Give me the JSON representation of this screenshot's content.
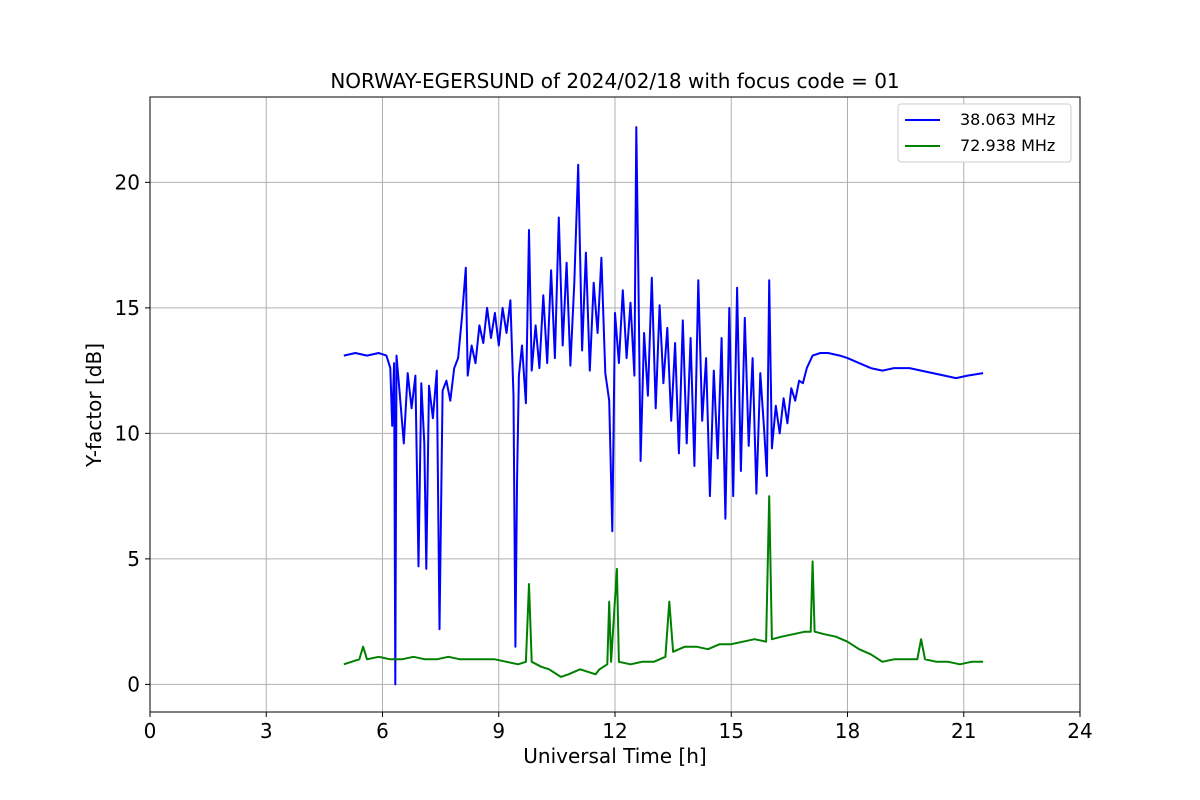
{
  "chart_data": {
    "type": "line",
    "title": "NORWAY-EGERSUND of 2024/02/18 with focus code = 01",
    "xlabel": "Universal Time [h]",
    "ylabel": "Y-factor [dB]",
    "xlim": [
      0,
      24
    ],
    "ylim": [
      -1.1,
      23.4
    ],
    "xticks": [
      0,
      3,
      6,
      9,
      12,
      15,
      18,
      21,
      24
    ],
    "yticks": [
      0,
      5,
      10,
      15,
      20
    ],
    "grid": true,
    "legend_position": "top-right",
    "series": [
      {
        "name": "38.063 MHz",
        "color": "#0000ff",
        "points": [
          [
            5.0,
            13.1
          ],
          [
            5.3,
            13.2
          ],
          [
            5.6,
            13.1
          ],
          [
            5.9,
            13.2
          ],
          [
            6.1,
            13.1
          ],
          [
            6.2,
            12.6
          ],
          [
            6.25,
            10.3
          ],
          [
            6.3,
            12.8
          ],
          [
            6.33,
            0.0
          ],
          [
            6.36,
            13.1
          ],
          [
            6.45,
            11.5
          ],
          [
            6.55,
            9.6
          ],
          [
            6.65,
            12.4
          ],
          [
            6.75,
            11.0
          ],
          [
            6.85,
            12.3
          ],
          [
            6.93,
            4.7
          ],
          [
            7.0,
            12.0
          ],
          [
            7.08,
            9.6
          ],
          [
            7.13,
            4.6
          ],
          [
            7.2,
            11.9
          ],
          [
            7.3,
            10.6
          ],
          [
            7.4,
            12.5
          ],
          [
            7.47,
            2.2
          ],
          [
            7.55,
            11.7
          ],
          [
            7.65,
            12.1
          ],
          [
            7.75,
            11.3
          ],
          [
            7.85,
            12.6
          ],
          [
            7.95,
            13.0
          ],
          [
            8.05,
            14.6
          ],
          [
            8.15,
            16.6
          ],
          [
            8.2,
            12.3
          ],
          [
            8.3,
            13.5
          ],
          [
            8.4,
            12.8
          ],
          [
            8.5,
            14.3
          ],
          [
            8.6,
            13.6
          ],
          [
            8.7,
            15.0
          ],
          [
            8.8,
            13.8
          ],
          [
            8.9,
            14.8
          ],
          [
            9.0,
            13.5
          ],
          [
            9.1,
            15.0
          ],
          [
            9.2,
            14.0
          ],
          [
            9.3,
            15.3
          ],
          [
            9.38,
            11.5
          ],
          [
            9.43,
            1.5
          ],
          [
            9.47,
            8.0
          ],
          [
            9.52,
            12.3
          ],
          [
            9.6,
            13.5
          ],
          [
            9.7,
            11.2
          ],
          [
            9.78,
            18.1
          ],
          [
            9.85,
            12.5
          ],
          [
            9.95,
            14.3
          ],
          [
            10.05,
            12.6
          ],
          [
            10.15,
            15.5
          ],
          [
            10.25,
            12.8
          ],
          [
            10.35,
            16.5
          ],
          [
            10.45,
            13.0
          ],
          [
            10.55,
            18.6
          ],
          [
            10.65,
            13.5
          ],
          [
            10.75,
            16.8
          ],
          [
            10.85,
            12.7
          ],
          [
            10.95,
            16.0
          ],
          [
            11.05,
            20.7
          ],
          [
            11.15,
            13.3
          ],
          [
            11.25,
            17.2
          ],
          [
            11.35,
            12.5
          ],
          [
            11.45,
            16.0
          ],
          [
            11.55,
            14.0
          ],
          [
            11.65,
            17.0
          ],
          [
            11.75,
            12.4
          ],
          [
            11.85,
            11.3
          ],
          [
            11.93,
            6.1
          ],
          [
            12.0,
            14.8
          ],
          [
            12.1,
            12.8
          ],
          [
            12.2,
            15.7
          ],
          [
            12.3,
            13.0
          ],
          [
            12.4,
            15.2
          ],
          [
            12.5,
            12.3
          ],
          [
            12.55,
            22.2
          ],
          [
            12.6,
            16.5
          ],
          [
            12.66,
            8.9
          ],
          [
            12.75,
            14.0
          ],
          [
            12.85,
            11.5
          ],
          [
            12.95,
            16.2
          ],
          [
            13.05,
            11.0
          ],
          [
            13.15,
            15.1
          ],
          [
            13.25,
            12.0
          ],
          [
            13.35,
            14.2
          ],
          [
            13.45,
            10.5
          ],
          [
            13.55,
            13.6
          ],
          [
            13.65,
            9.2
          ],
          [
            13.75,
            14.5
          ],
          [
            13.85,
            9.6
          ],
          [
            13.95,
            13.8
          ],
          [
            14.05,
            8.7
          ],
          [
            14.15,
            16.1
          ],
          [
            14.25,
            10.5
          ],
          [
            14.35,
            13.0
          ],
          [
            14.45,
            7.5
          ],
          [
            14.55,
            12.5
          ],
          [
            14.65,
            9.0
          ],
          [
            14.75,
            13.8
          ],
          [
            14.85,
            6.6
          ],
          [
            14.95,
            15.0
          ],
          [
            15.05,
            7.5
          ],
          [
            15.15,
            15.8
          ],
          [
            15.25,
            8.5
          ],
          [
            15.35,
            14.6
          ],
          [
            15.45,
            9.5
          ],
          [
            15.55,
            13.0
          ],
          [
            15.65,
            7.6
          ],
          [
            15.75,
            12.4
          ],
          [
            15.85,
            10.1
          ],
          [
            15.92,
            8.3
          ],
          [
            15.98,
            16.1
          ],
          [
            16.05,
            9.4
          ],
          [
            16.15,
            11.1
          ],
          [
            16.25,
            10.0
          ],
          [
            16.35,
            11.4
          ],
          [
            16.45,
            10.4
          ],
          [
            16.55,
            11.8
          ],
          [
            16.65,
            11.3
          ],
          [
            16.75,
            12.1
          ],
          [
            16.85,
            12.0
          ],
          [
            16.95,
            12.6
          ],
          [
            17.1,
            13.1
          ],
          [
            17.3,
            13.2
          ],
          [
            17.5,
            13.2
          ],
          [
            17.8,
            13.1
          ],
          [
            18.0,
            13.0
          ],
          [
            18.3,
            12.8
          ],
          [
            18.6,
            12.6
          ],
          [
            18.9,
            12.5
          ],
          [
            19.2,
            12.6
          ],
          [
            19.6,
            12.6
          ],
          [
            19.9,
            12.5
          ],
          [
            20.2,
            12.4
          ],
          [
            20.5,
            12.3
          ],
          [
            20.8,
            12.2
          ],
          [
            21.1,
            12.3
          ],
          [
            21.5,
            12.4
          ]
        ]
      },
      {
        "name": "72.938 MHz",
        "color": "#008000",
        "points": [
          [
            5.0,
            0.8
          ],
          [
            5.2,
            0.9
          ],
          [
            5.4,
            1.0
          ],
          [
            5.5,
            1.5
          ],
          [
            5.6,
            1.0
          ],
          [
            5.9,
            1.1
          ],
          [
            6.2,
            1.0
          ],
          [
            6.5,
            1.0
          ],
          [
            6.8,
            1.1
          ],
          [
            7.1,
            1.0
          ],
          [
            7.4,
            1.0
          ],
          [
            7.7,
            1.1
          ],
          [
            8.0,
            1.0
          ],
          [
            8.3,
            1.0
          ],
          [
            8.6,
            1.0
          ],
          [
            8.9,
            1.0
          ],
          [
            9.2,
            0.9
          ],
          [
            9.5,
            0.8
          ],
          [
            9.7,
            0.9
          ],
          [
            9.78,
            4.0
          ],
          [
            9.85,
            0.9
          ],
          [
            10.1,
            0.7
          ],
          [
            10.3,
            0.6
          ],
          [
            10.6,
            0.3
          ],
          [
            10.8,
            0.4
          ],
          [
            11.1,
            0.6
          ],
          [
            11.3,
            0.5
          ],
          [
            11.5,
            0.4
          ],
          [
            11.6,
            0.6
          ],
          [
            11.8,
            0.8
          ],
          [
            11.85,
            3.3
          ],
          [
            11.9,
            0.9
          ],
          [
            12.05,
            4.6
          ],
          [
            12.1,
            0.9
          ],
          [
            12.4,
            0.8
          ],
          [
            12.7,
            0.9
          ],
          [
            13.0,
            0.9
          ],
          [
            13.3,
            1.1
          ],
          [
            13.4,
            3.3
          ],
          [
            13.5,
            1.3
          ],
          [
            13.8,
            1.5
          ],
          [
            14.1,
            1.5
          ],
          [
            14.4,
            1.4
          ],
          [
            14.7,
            1.6
          ],
          [
            15.0,
            1.6
          ],
          [
            15.3,
            1.7
          ],
          [
            15.6,
            1.8
          ],
          [
            15.9,
            1.7
          ],
          [
            15.98,
            7.5
          ],
          [
            16.05,
            1.8
          ],
          [
            16.3,
            1.9
          ],
          [
            16.6,
            2.0
          ],
          [
            16.9,
            2.1
          ],
          [
            17.05,
            2.1
          ],
          [
            17.1,
            4.9
          ],
          [
            17.15,
            2.1
          ],
          [
            17.4,
            2.0
          ],
          [
            17.7,
            1.9
          ],
          [
            18.0,
            1.7
          ],
          [
            18.3,
            1.4
          ],
          [
            18.6,
            1.2
          ],
          [
            18.9,
            0.9
          ],
          [
            19.2,
            1.0
          ],
          [
            19.5,
            1.0
          ],
          [
            19.8,
            1.0
          ],
          [
            19.9,
            1.8
          ],
          [
            20.0,
            1.0
          ],
          [
            20.3,
            0.9
          ],
          [
            20.6,
            0.9
          ],
          [
            20.9,
            0.8
          ],
          [
            21.2,
            0.9
          ],
          [
            21.5,
            0.9
          ]
        ]
      }
    ]
  }
}
